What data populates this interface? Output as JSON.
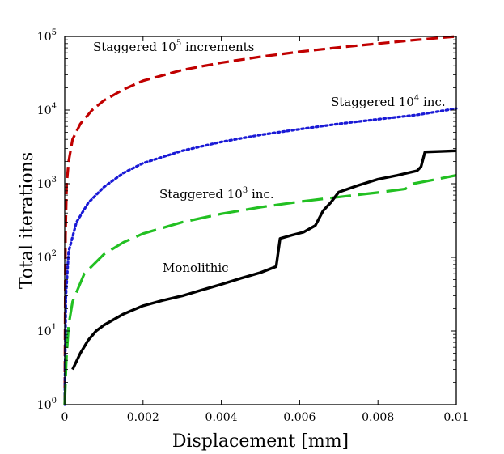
{
  "chart_data": {
    "type": "line",
    "title": "",
    "xlabel": "Displacement [mm]",
    "ylabel": "Total iterations",
    "xlim": [
      0,
      0.01
    ],
    "ylim": [
      1,
      100000
    ],
    "yscale": "log",
    "grid": false,
    "x_ticks": [
      "0",
      "0.002",
      "0.004",
      "0.006",
      "0.008",
      "0.01"
    ],
    "y_ticks": [
      {
        "base": "10",
        "exp": "0"
      },
      {
        "base": "10",
        "exp": "1"
      },
      {
        "base": "10",
        "exp": "2"
      },
      {
        "base": "10",
        "exp": "3"
      },
      {
        "base": "10",
        "exp": "4"
      },
      {
        "base": "10",
        "exp": "5"
      }
    ],
    "series": [
      {
        "name": "Staggered 10^5 increments",
        "color": "#c00000",
        "style": "dashed",
        "points": [
          [
            0,
            1
          ],
          [
            2e-05,
            200
          ],
          [
            5e-05,
            1000
          ],
          [
            0.0001,
            2000
          ],
          [
            0.0002,
            4000
          ],
          [
            0.0004,
            6500
          ],
          [
            0.0007,
            10000
          ],
          [
            0.001,
            13500
          ],
          [
            0.0015,
            19000
          ],
          [
            0.002,
            25000
          ],
          [
            0.003,
            35000
          ],
          [
            0.004,
            44000
          ],
          [
            0.005,
            53000
          ],
          [
            0.006,
            62000
          ],
          [
            0.007,
            71000
          ],
          [
            0.008,
            80000
          ],
          [
            0.009,
            90000
          ],
          [
            0.01,
            100000
          ]
        ]
      },
      {
        "name": "Staggered 10^4 inc.",
        "color": "#1a1ad6",
        "style": "dotted",
        "points": [
          [
            0,
            1
          ],
          [
            3e-05,
            30
          ],
          [
            0.0001,
            120
          ],
          [
            0.0003,
            300
          ],
          [
            0.0006,
            550
          ],
          [
            0.001,
            900
          ],
          [
            0.0015,
            1400
          ],
          [
            0.002,
            1900
          ],
          [
            0.003,
            2800
          ],
          [
            0.004,
            3700
          ],
          [
            0.005,
            4600
          ],
          [
            0.006,
            5500
          ],
          [
            0.007,
            6500
          ],
          [
            0.008,
            7500
          ],
          [
            0.009,
            8600
          ],
          [
            0.0095,
            9500
          ],
          [
            0.01,
            10500
          ]
        ]
      },
      {
        "name": "Staggered 10^3 inc.",
        "color": "#22c022",
        "style": "longdash",
        "points": [
          [
            0,
            1
          ],
          [
            4e-05,
            4
          ],
          [
            0.0001,
            12
          ],
          [
            0.0002,
            25
          ],
          [
            0.0005,
            60
          ],
          [
            0.001,
            110
          ],
          [
            0.0015,
            160
          ],
          [
            0.002,
            210
          ],
          [
            0.003,
            300
          ],
          [
            0.004,
            390
          ],
          [
            0.005,
            480
          ],
          [
            0.006,
            570
          ],
          [
            0.007,
            660
          ],
          [
            0.008,
            760
          ],
          [
            0.0087,
            850
          ],
          [
            0.0089,
            1000
          ],
          [
            0.0095,
            1150
          ],
          [
            0.01,
            1300
          ]
        ]
      },
      {
        "name": "Monolithic",
        "color": "#000000",
        "style": "solid",
        "points": [
          [
            0.0002,
            3
          ],
          [
            0.0004,
            5
          ],
          [
            0.0006,
            7.5
          ],
          [
            0.0008,
            10
          ],
          [
            0.001,
            12
          ],
          [
            0.0015,
            17
          ],
          [
            0.002,
            22
          ],
          [
            0.0025,
            26
          ],
          [
            0.003,
            30
          ],
          [
            0.0035,
            36
          ],
          [
            0.004,
            43
          ],
          [
            0.0045,
            52
          ],
          [
            0.005,
            62
          ],
          [
            0.0054,
            75
          ],
          [
            0.0055,
            180
          ],
          [
            0.0058,
            200
          ],
          [
            0.0061,
            220
          ],
          [
            0.0064,
            270
          ],
          [
            0.0066,
            430
          ],
          [
            0.0068,
            560
          ],
          [
            0.007,
            770
          ],
          [
            0.0075,
            950
          ],
          [
            0.008,
            1150
          ],
          [
            0.0085,
            1300
          ],
          [
            0.009,
            1500
          ],
          [
            0.0091,
            1700
          ],
          [
            0.0092,
            2700
          ],
          [
            0.0096,
            2750
          ],
          [
            0.01,
            2800
          ]
        ]
      }
    ],
    "annotations": [
      {
        "series": 0,
        "before": "Staggered 10",
        "sup": "5",
        "after": " increments"
      },
      {
        "series": 1,
        "before": "Staggered 10",
        "sup": "4",
        "after": " inc."
      },
      {
        "series": 2,
        "before": "Staggered 10",
        "sup": "3",
        "after": " inc."
      },
      {
        "series": 3,
        "before": "Monolithic",
        "sup": "",
        "after": ""
      }
    ]
  }
}
